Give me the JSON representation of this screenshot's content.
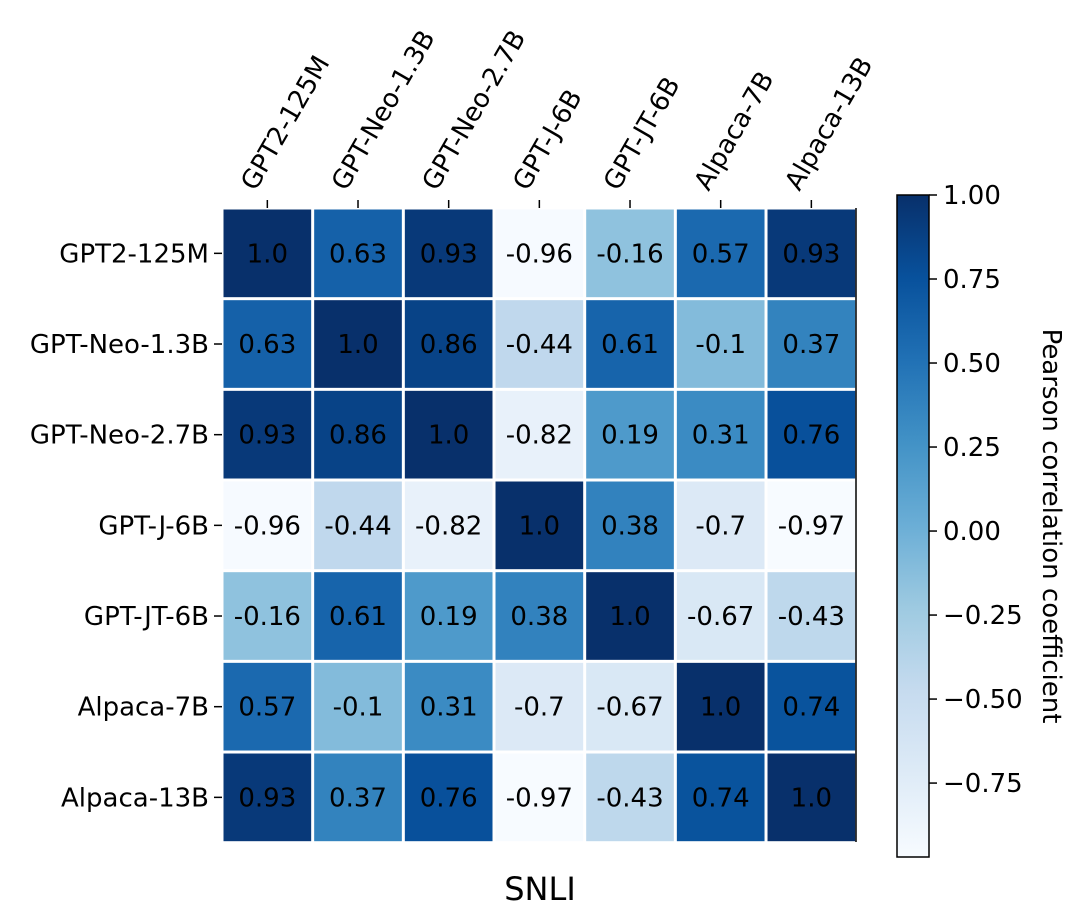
{
  "chart_data": {
    "type": "heatmap",
    "title": "SNLI",
    "row_labels": [
      "GPT2-125M",
      "GPT-Neo-1.3B",
      "GPT-Neo-2.7B",
      "GPT-J-6B",
      "GPT-JT-6B",
      "Alpaca-7B",
      "Alpaca-13B"
    ],
    "col_labels": [
      "GPT2-125M",
      "GPT-Neo-1.3B",
      "GPT-Neo-2.7B",
      "GPT-J-6B",
      "GPT-JT-6B",
      "Alpaca-7B",
      "Alpaca-13B"
    ],
    "values": [
      [
        1.0,
        0.63,
        0.93,
        -0.96,
        -0.16,
        0.57,
        0.93
      ],
      [
        0.63,
        1.0,
        0.86,
        -0.44,
        0.61,
        -0.1,
        0.37
      ],
      [
        0.93,
        0.86,
        1.0,
        -0.82,
        0.19,
        0.31,
        0.76
      ],
      [
        -0.96,
        -0.44,
        -0.82,
        1.0,
        0.38,
        -0.7,
        -0.97
      ],
      [
        -0.16,
        0.61,
        0.19,
        0.38,
        1.0,
        -0.67,
        -0.43
      ],
      [
        0.57,
        -0.1,
        0.31,
        -0.7,
        -0.67,
        1.0,
        0.74
      ],
      [
        0.93,
        0.37,
        0.76,
        -0.97,
        -0.43,
        0.74,
        1.0
      ]
    ],
    "value_labels": [
      [
        "1.0",
        "0.63",
        "0.93",
        "-0.96",
        "-0.16",
        "0.57",
        "0.93"
      ],
      [
        "0.63",
        "1.0",
        "0.86",
        "-0.44",
        "0.61",
        "-0.1",
        "0.37"
      ],
      [
        "0.93",
        "0.86",
        "1.0",
        "-0.82",
        "0.19",
        "0.31",
        "0.76"
      ],
      [
        "-0.96",
        "-0.44",
        "-0.82",
        "1.0",
        "0.38",
        "-0.7",
        "-0.97"
      ],
      [
        "-0.16",
        "0.61",
        "0.19",
        "0.38",
        "1.0",
        "-0.67",
        "-0.43"
      ],
      [
        "0.57",
        "-0.1",
        "0.31",
        "-0.7",
        "-0.67",
        "1.0",
        "0.74"
      ],
      [
        "0.93",
        "0.37",
        "0.76",
        "-0.97",
        "-0.43",
        "0.74",
        "1.0"
      ]
    ],
    "colormap": "Blues",
    "color_range": [
      -0.97,
      1.0
    ],
    "colorbar": {
      "label": "Pearson correlation coefficient",
      "ticks": [
        1.0,
        0.75,
        0.5,
        0.25,
        0.0,
        -0.25,
        -0.5,
        -0.75
      ],
      "tick_labels": [
        "1.00",
        "0.75",
        "0.50",
        "0.25",
        "0.00",
        "−0.25",
        "−0.50",
        "−0.75"
      ]
    },
    "grid": false,
    "column_labels_position": "top"
  }
}
